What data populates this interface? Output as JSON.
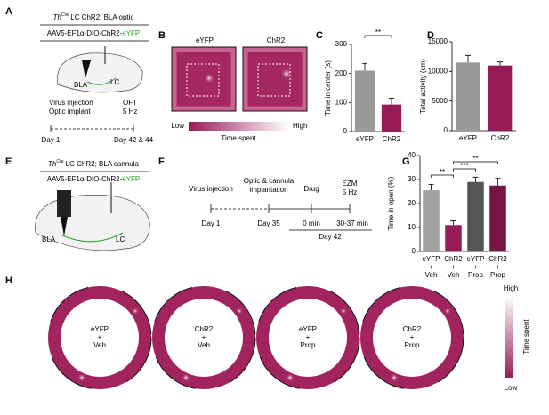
{
  "panels": {
    "a": "A",
    "b": "B",
    "c": "C",
    "d": "D",
    "e": "E",
    "f": "F",
    "g": "G",
    "h": "H"
  },
  "panel_a": {
    "title": {
      "gene": "Th",
      "sup": "Cre",
      "rest": " LC ChR2; BLA optic"
    },
    "construct": {
      "main": "AAV5-EF1α-DIO-ChR2-",
      "reporter": "eYFP"
    },
    "bla": "BLA",
    "lc": "LC",
    "step1": "Virus injection",
    "step2": "Optic implant",
    "test": "OFT",
    "freq": "5 Hz",
    "day_start": "Day 1",
    "day_end": "Day 42 & 44"
  },
  "panel_b": {
    "left": "eYFP",
    "right": "ChR2",
    "low": "Low",
    "scale": "Time spent",
    "high": "High"
  },
  "panel_e": {
    "title": {
      "gene": "Th",
      "sup": "Cre",
      "rest": " LC ChR2; BLA cannula"
    },
    "construct": {
      "main": "AAV5-EF1α-DIO-ChR2-",
      "reporter": "eYFP"
    },
    "bla": "BLA",
    "lc": "LC"
  },
  "panel_f": {
    "step1": "Virus injection",
    "step2a": "Optic & cannula",
    "step2b": "implantation",
    "drug": "Drug",
    "test": "EZM",
    "freq": "5 Hz",
    "day1": "Day 1",
    "day35": "Day 35",
    "t0": "0 min",
    "t1": "30-37 min",
    "day42": "Day 42"
  },
  "panel_h": {
    "rings": [
      [
        "eYFP",
        "+",
        "Veh"
      ],
      [
        "ChR2",
        "+",
        "Veh"
      ],
      [
        "eYFP",
        "+",
        "Prop"
      ],
      [
        "ChR2",
        "+",
        "Prop"
      ]
    ],
    "high": "High",
    "scale": "Time spent",
    "low": "Low"
  },
  "chart_data": [
    {
      "type": "bar",
      "ylabel": "Time in center (s)",
      "categories": [
        "eYFP",
        "ChR2"
      ],
      "values": [
        210,
        93
      ],
      "errors": [
        25,
        22
      ],
      "colors": [
        "#9a9a9a",
        "#981a57"
      ],
      "ylim": [
        0,
        300
      ],
      "yticks": [
        0,
        100,
        200,
        300
      ],
      "annotations": [
        "**"
      ]
    },
    {
      "type": "bar",
      "ylabel": "Total activity (cm)",
      "categories": [
        "eYFP",
        "ChR2"
      ],
      "values": [
        11500,
        11000
      ],
      "errors": [
        1200,
        600
      ],
      "colors": [
        "#9a9a9a",
        "#981a57"
      ],
      "ylim": [
        0,
        15000
      ],
      "yticks": [
        0,
        5000,
        10000,
        15000
      ],
      "annotations": []
    },
    {
      "type": "bar",
      "ylabel": "Time in open (%)",
      "categories": [
        "eYFP\n+\nVeh",
        "ChR2\n+\nVeh",
        "eYFP\n+\nProp",
        "ChR2\n+\nProp"
      ],
      "values": [
        25.5,
        11,
        29,
        27.5
      ],
      "errors": [
        2.5,
        1.8,
        2,
        3
      ],
      "colors": [
        "#a0a0a0",
        "#981a57",
        "#555555",
        "#761444"
      ],
      "ylim": [
        0,
        40
      ],
      "yticks": [
        0,
        10,
        20,
        30,
        40
      ],
      "annotations": [
        "**",
        "***",
        "**"
      ]
    }
  ]
}
